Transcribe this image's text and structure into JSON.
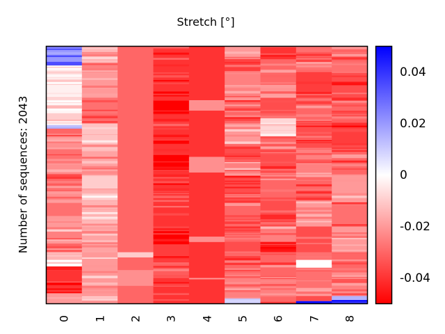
{
  "chart_data": {
    "type": "heatmap",
    "title": "Stretch [°]",
    "xlabel": "",
    "ylabel": "Number of sequences: 2043",
    "n_rows": 2043,
    "x_tick_labels": [
      "0",
      "1",
      "2",
      "3",
      "4",
      "5",
      "6",
      "7",
      "8"
    ],
    "colormap": "bwr",
    "color_range": [
      -0.05,
      0.05
    ],
    "colorbar": {
      "ticks": [
        0.04,
        0.02,
        0,
        -0.02,
        -0.04
      ],
      "tick_labels": [
        "0.04",
        "0.02",
        "0",
        "-0.02",
        "-0.04"
      ]
    },
    "columns": [
      {
        "label": "0",
        "segments": [
          [
            0.0,
            0.01,
            0.02
          ],
          [
            0.01,
            0.015,
            0.035
          ],
          [
            0.015,
            0.035,
            0.02
          ],
          [
            0.035,
            0.042,
            0.035
          ],
          [
            0.042,
            0.06,
            0.02
          ],
          [
            0.06,
            0.075,
            0.035
          ],
          [
            0.075,
            0.08,
            -0.01
          ],
          [
            0.08,
            0.13,
            -0.004
          ],
          [
            0.13,
            0.15,
            -0.01
          ],
          [
            0.15,
            0.2,
            -0.003
          ],
          [
            0.2,
            0.22,
            -0.008
          ],
          [
            0.22,
            0.26,
            -0.002
          ],
          [
            0.26,
            0.3,
            -0.01
          ],
          [
            0.3,
            0.32,
            0.008
          ],
          [
            0.32,
            0.35,
            -0.03
          ],
          [
            0.35,
            0.4,
            -0.022
          ],
          [
            0.4,
            0.46,
            -0.028
          ],
          [
            0.46,
            0.5,
            -0.022
          ],
          [
            0.5,
            0.55,
            -0.03
          ],
          [
            0.55,
            0.6,
            -0.02
          ],
          [
            0.6,
            0.66,
            -0.028
          ],
          [
            0.66,
            0.72,
            -0.02
          ],
          [
            0.72,
            0.8,
            -0.025
          ],
          [
            0.8,
            0.83,
            -0.015
          ],
          [
            0.83,
            0.855,
            0.0
          ],
          [
            0.855,
            0.87,
            -0.045
          ],
          [
            0.87,
            0.96,
            -0.04
          ],
          [
            0.96,
            1.0,
            -0.02
          ]
        ]
      },
      {
        "label": "1",
        "segments": [
          [
            0.0,
            0.05,
            -0.015
          ],
          [
            0.05,
            0.1,
            -0.025
          ],
          [
            0.1,
            0.2,
            -0.02
          ],
          [
            0.2,
            0.3,
            -0.028
          ],
          [
            0.3,
            0.4,
            -0.012
          ],
          [
            0.4,
            0.5,
            -0.018
          ],
          [
            0.5,
            0.6,
            -0.01
          ],
          [
            0.6,
            0.7,
            -0.015
          ],
          [
            0.7,
            0.8,
            -0.018
          ],
          [
            0.8,
            0.85,
            -0.02
          ],
          [
            0.85,
            0.97,
            -0.02
          ],
          [
            0.97,
            1.0,
            -0.012
          ]
        ]
      },
      {
        "label": "2",
        "segments": [
          [
            0.0,
            0.8,
            -0.03
          ],
          [
            0.8,
            0.82,
            -0.01
          ],
          [
            0.82,
            0.87,
            -0.03
          ],
          [
            0.87,
            0.93,
            -0.022
          ],
          [
            0.93,
            1.0,
            -0.03
          ]
        ]
      },
      {
        "label": "3",
        "segments": [
          [
            0.0,
            0.21,
            -0.04
          ],
          [
            0.21,
            0.25,
            -0.05
          ],
          [
            0.25,
            0.42,
            -0.04
          ],
          [
            0.42,
            0.48,
            -0.05
          ],
          [
            0.48,
            0.73,
            -0.04
          ],
          [
            0.73,
            0.77,
            -0.05
          ],
          [
            0.77,
            0.83,
            -0.038
          ],
          [
            0.83,
            0.9,
            -0.032
          ],
          [
            0.9,
            1.0,
            -0.04
          ]
        ]
      },
      {
        "label": "4",
        "segments": [
          [
            0.0,
            0.21,
            -0.04
          ],
          [
            0.21,
            0.25,
            -0.022
          ],
          [
            0.25,
            0.43,
            -0.04
          ],
          [
            0.43,
            0.49,
            -0.022
          ],
          [
            0.49,
            0.74,
            -0.04
          ],
          [
            0.74,
            0.76,
            -0.022
          ],
          [
            0.76,
            0.9,
            -0.04
          ],
          [
            0.9,
            0.905,
            -0.02
          ],
          [
            0.905,
            1.0,
            -0.04
          ]
        ]
      },
      {
        "label": "5",
        "segments": [
          [
            0.0,
            0.05,
            -0.02
          ],
          [
            0.05,
            0.1,
            -0.038
          ],
          [
            0.1,
            0.2,
            -0.025
          ],
          [
            0.2,
            0.3,
            -0.03
          ],
          [
            0.3,
            0.38,
            -0.02
          ],
          [
            0.38,
            0.45,
            -0.035
          ],
          [
            0.45,
            0.5,
            -0.025
          ],
          [
            0.5,
            0.6,
            -0.035
          ],
          [
            0.6,
            0.7,
            -0.03
          ],
          [
            0.7,
            0.8,
            -0.035
          ],
          [
            0.8,
            0.9,
            -0.03
          ],
          [
            0.9,
            0.98,
            -0.025
          ],
          [
            0.98,
            1.0,
            0.008
          ]
        ]
      },
      {
        "label": "6",
        "segments": [
          [
            0.0,
            0.05,
            -0.04
          ],
          [
            0.05,
            0.15,
            -0.03
          ],
          [
            0.15,
            0.2,
            -0.02
          ],
          [
            0.2,
            0.28,
            -0.035
          ],
          [
            0.28,
            0.35,
            -0.008
          ],
          [
            0.35,
            0.4,
            -0.03
          ],
          [
            0.4,
            0.5,
            -0.035
          ],
          [
            0.5,
            0.6,
            -0.03
          ],
          [
            0.6,
            0.7,
            -0.035
          ],
          [
            0.7,
            0.76,
            -0.025
          ],
          [
            0.76,
            0.8,
            -0.045
          ],
          [
            0.8,
            0.9,
            -0.03
          ],
          [
            0.9,
            0.96,
            -0.025
          ],
          [
            0.96,
            1.0,
            -0.03
          ]
        ]
      },
      {
        "label": "7",
        "segments": [
          [
            0.0,
            0.1,
            -0.028
          ],
          [
            0.1,
            0.2,
            -0.038
          ],
          [
            0.2,
            0.3,
            -0.03
          ],
          [
            0.3,
            0.4,
            -0.035
          ],
          [
            0.4,
            0.5,
            -0.025
          ],
          [
            0.5,
            0.6,
            -0.03
          ],
          [
            0.6,
            0.7,
            -0.02
          ],
          [
            0.7,
            0.8,
            -0.035
          ],
          [
            0.8,
            0.83,
            -0.028
          ],
          [
            0.83,
            0.86,
            0.0
          ],
          [
            0.86,
            0.97,
            -0.028
          ],
          [
            0.97,
            0.99,
            -0.035
          ],
          [
            0.99,
            1.0,
            0.035
          ]
        ]
      },
      {
        "label": "8",
        "segments": [
          [
            0.0,
            0.1,
            -0.028
          ],
          [
            0.1,
            0.2,
            -0.035
          ],
          [
            0.2,
            0.3,
            -0.03
          ],
          [
            0.3,
            0.4,
            -0.038
          ],
          [
            0.4,
            0.5,
            -0.03
          ],
          [
            0.5,
            0.6,
            -0.02
          ],
          [
            0.6,
            0.7,
            -0.028
          ],
          [
            0.7,
            0.8,
            -0.02
          ],
          [
            0.8,
            0.9,
            -0.03
          ],
          [
            0.9,
            0.97,
            -0.025
          ],
          [
            0.97,
            0.985,
            0.015
          ],
          [
            0.985,
            1.0,
            0.04
          ]
        ]
      }
    ]
  }
}
